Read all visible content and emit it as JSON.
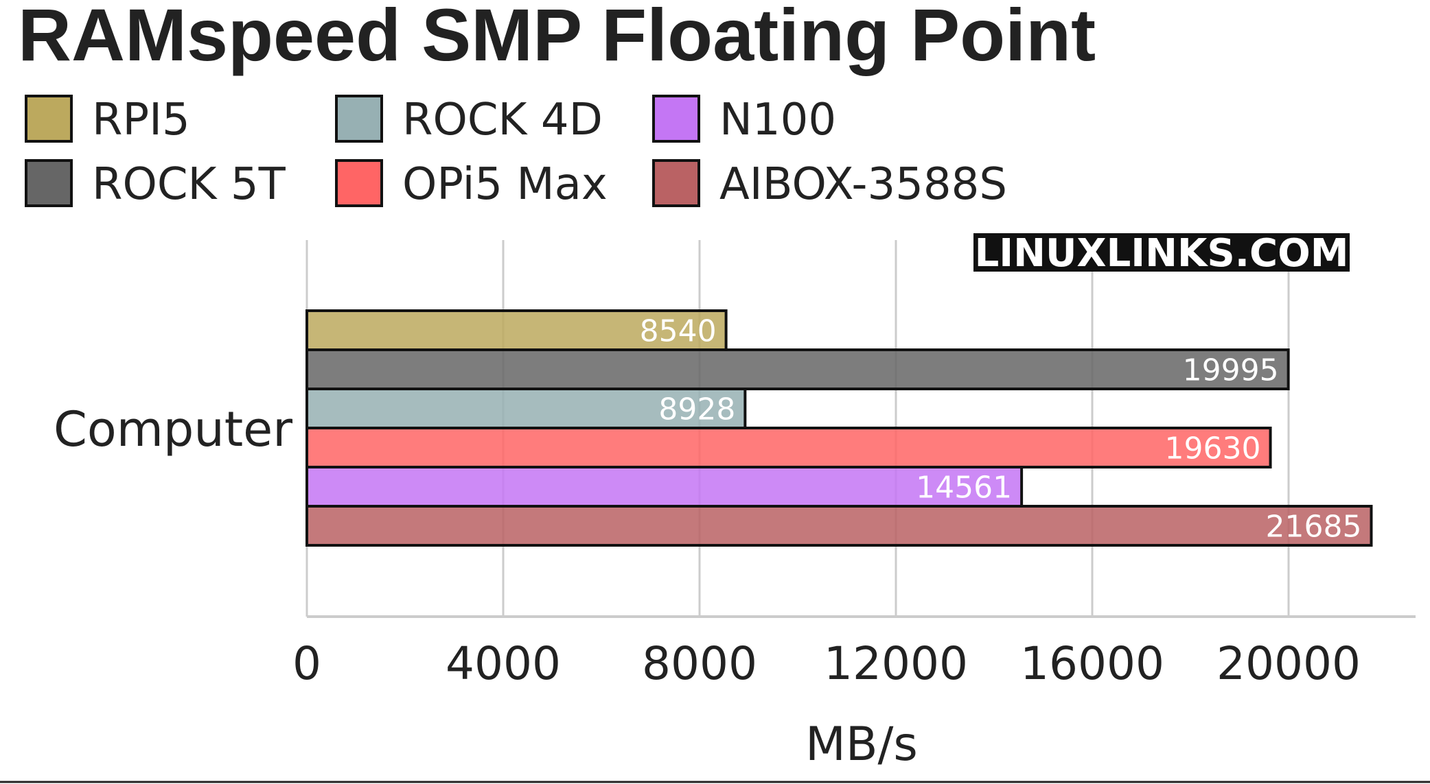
{
  "chart_data": {
    "type": "bar",
    "orientation": "horizontal",
    "title": "RAMspeed SMP Floating Point",
    "watermark": "LINUXLINKS.COM",
    "categories": [
      "Computer"
    ],
    "xlabel": "MB/s",
    "ylabel": "",
    "xlim": [
      0,
      22500
    ],
    "xticks": [
      0,
      4000,
      8000,
      12000,
      16000,
      20000
    ],
    "grid": true,
    "legend_position": "top-left",
    "series": [
      {
        "name": "RPI5",
        "color": "#bca95e",
        "values": [
          8540
        ]
      },
      {
        "name": "ROCK 5T",
        "color": "#666666",
        "values": [
          19995
        ]
      },
      {
        "name": "ROCK 4D",
        "color": "#97b0b3",
        "values": [
          8928
        ]
      },
      {
        "name": "OPi5 Max",
        "color": "#ff6565",
        "values": [
          19630
        ]
      },
      {
        "name": "N100",
        "color": "#c476f4",
        "values": [
          14561
        ]
      },
      {
        "name": "AIBOX-3588S",
        "color": "#ba6264",
        "values": [
          21685
        ]
      }
    ]
  }
}
